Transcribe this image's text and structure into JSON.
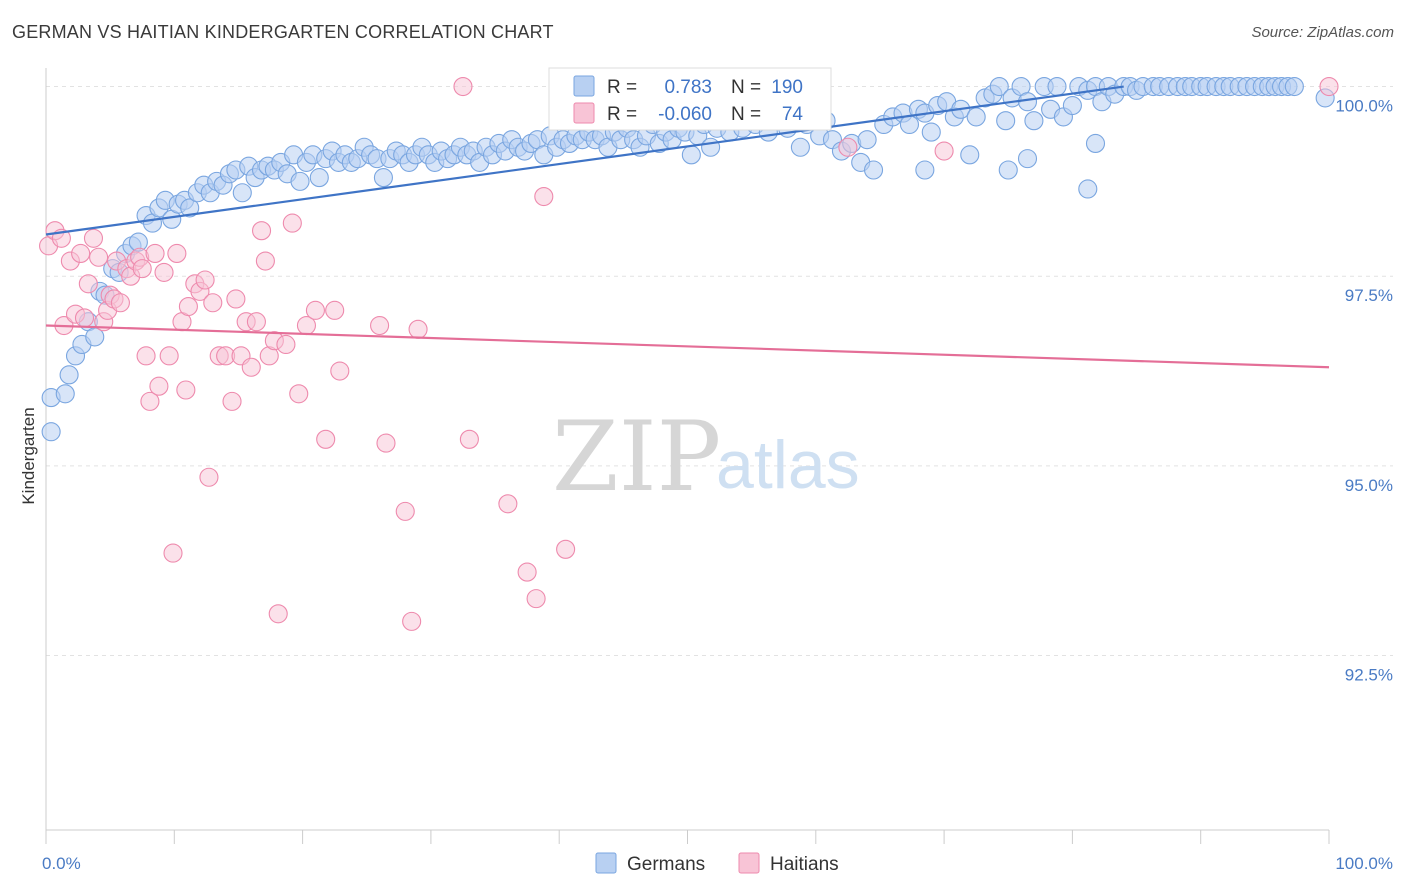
{
  "header": {
    "title": "GERMAN VS HAITIAN KINDERGARTEN CORRELATION CHART",
    "source": "Source: ZipAtlas.com"
  },
  "legend": {
    "rows": [
      {
        "r_label": "R =",
        "r_value": "0.783",
        "n_label": "N =",
        "n_value": "190",
        "color": "#7aa6e0",
        "fill": "#b8d0f2"
      },
      {
        "r_label": "R =",
        "r_value": "-0.060",
        "n_label": "N =",
        "n_value": "74",
        "color": "#ee8aad",
        "fill": "#f8c4d6"
      }
    ]
  },
  "bottom_legend": [
    {
      "label": "Germans",
      "color": "#7aa6e0",
      "fill": "#b8d0f2"
    },
    {
      "label": "Haitians",
      "color": "#ee8aad",
      "fill": "#f8c4d6"
    }
  ],
  "watermark": {
    "zip": "ZIP",
    "atlas": "atlas"
  },
  "chart_data": {
    "type": "scatter",
    "title": "GERMAN VS HAITIAN KINDERGARTEN CORRELATION CHART",
    "xlabel": "",
    "ylabel": "Kindergarten",
    "xlim": [
      0,
      100
    ],
    "ylim": [
      90.2,
      100.35
    ],
    "x_tick_labels": [
      "0.0%",
      "100.0%"
    ],
    "y_ticks": [
      {
        "value": 92.5,
        "label": "92.5%"
      },
      {
        "value": 95.0,
        "label": "95.0%"
      },
      {
        "value": 97.5,
        "label": "97.5%"
      },
      {
        "value": 100.0,
        "label": "100.0%"
      }
    ],
    "grid": "horizontal dashed",
    "series": [
      {
        "name": "Germans",
        "color": "#3f74c6",
        "point_color": "#7aa6e0",
        "trend": {
          "x0": 0,
          "y0": 98.05,
          "x1": 84,
          "y1": 100.0
        },
        "points": [
          [
            0.4,
            95.9
          ],
          [
            0.4,
            95.45
          ],
          [
            1.5,
            95.95
          ],
          [
            1.8,
            96.2
          ],
          [
            2.3,
            96.45
          ],
          [
            2.8,
            96.6
          ],
          [
            3.3,
            96.9
          ],
          [
            3.8,
            96.7
          ],
          [
            4.2,
            97.3
          ],
          [
            4.6,
            97.25
          ],
          [
            5.2,
            97.6
          ],
          [
            5.7,
            97.55
          ],
          [
            6.2,
            97.8
          ],
          [
            6.7,
            97.9
          ],
          [
            7.2,
            97.95
          ],
          [
            7.8,
            98.3
          ],
          [
            8.3,
            98.2
          ],
          [
            8.8,
            98.4
          ],
          [
            9.3,
            98.5
          ],
          [
            9.8,
            98.25
          ],
          [
            10.3,
            98.45
          ],
          [
            10.8,
            98.5
          ],
          [
            11.2,
            98.4
          ],
          [
            11.8,
            98.6
          ],
          [
            12.3,
            98.7
          ],
          [
            12.8,
            98.6
          ],
          [
            13.3,
            98.75
          ],
          [
            13.8,
            98.7
          ],
          [
            14.3,
            98.85
          ],
          [
            14.8,
            98.9
          ],
          [
            15.3,
            98.6
          ],
          [
            15.8,
            98.95
          ],
          [
            16.3,
            98.8
          ],
          [
            16.8,
            98.9
          ],
          [
            17.3,
            98.95
          ],
          [
            17.8,
            98.9
          ],
          [
            18.3,
            99.0
          ],
          [
            18.8,
            98.85
          ],
          [
            19.3,
            99.1
          ],
          [
            19.8,
            98.75
          ],
          [
            20.3,
            99.0
          ],
          [
            20.8,
            99.1
          ],
          [
            21.3,
            98.8
          ],
          [
            21.8,
            99.05
          ],
          [
            22.3,
            99.15
          ],
          [
            22.8,
            99.0
          ],
          [
            23.3,
            99.1
          ],
          [
            23.8,
            99.0
          ],
          [
            24.3,
            99.05
          ],
          [
            24.8,
            99.2
          ],
          [
            25.3,
            99.1
          ],
          [
            25.8,
            99.05
          ],
          [
            26.3,
            98.8
          ],
          [
            26.8,
            99.05
          ],
          [
            27.3,
            99.15
          ],
          [
            27.8,
            99.1
          ],
          [
            28.3,
            99.0
          ],
          [
            28.8,
            99.1
          ],
          [
            29.3,
            99.2
          ],
          [
            29.8,
            99.1
          ],
          [
            30.3,
            99.0
          ],
          [
            30.8,
            99.15
          ],
          [
            31.3,
            99.05
          ],
          [
            31.8,
            99.1
          ],
          [
            32.3,
            99.2
          ],
          [
            32.8,
            99.1
          ],
          [
            33.3,
            99.15
          ],
          [
            33.8,
            99.0
          ],
          [
            34.3,
            99.2
          ],
          [
            34.8,
            99.1
          ],
          [
            35.3,
            99.25
          ],
          [
            35.8,
            99.15
          ],
          [
            36.3,
            99.3
          ],
          [
            36.8,
            99.2
          ],
          [
            37.3,
            99.15
          ],
          [
            37.8,
            99.25
          ],
          [
            38.3,
            99.3
          ],
          [
            38.8,
            99.1
          ],
          [
            39.3,
            99.35
          ],
          [
            39.8,
            99.2
          ],
          [
            40.3,
            99.3
          ],
          [
            40.8,
            99.25
          ],
          [
            41.3,
            99.35
          ],
          [
            41.8,
            99.3
          ],
          [
            42.3,
            99.4
          ],
          [
            42.8,
            99.3
          ],
          [
            43.3,
            99.35
          ],
          [
            43.8,
            99.2
          ],
          [
            44.3,
            99.4
          ],
          [
            44.8,
            99.3
          ],
          [
            45.3,
            99.45
          ],
          [
            45.8,
            99.3
          ],
          [
            46.3,
            99.2
          ],
          [
            46.8,
            99.35
          ],
          [
            47.3,
            99.5
          ],
          [
            47.8,
            99.25
          ],
          [
            48.3,
            99.4
          ],
          [
            48.8,
            99.3
          ],
          [
            49.3,
            99.45
          ],
          [
            49.8,
            99.4
          ],
          [
            50.3,
            99.1
          ],
          [
            50.8,
            99.35
          ],
          [
            51.3,
            99.5
          ],
          [
            51.8,
            99.2
          ],
          [
            52.3,
            99.45
          ],
          [
            52.8,
            99.55
          ],
          [
            53.3,
            99.4
          ],
          [
            53.8,
            99.6
          ],
          [
            54.3,
            99.45
          ],
          [
            54.8,
            99.65
          ],
          [
            55.3,
            99.5
          ],
          [
            55.8,
            99.7
          ],
          [
            56.3,
            99.4
          ],
          [
            56.8,
            99.55
          ],
          [
            57.3,
            99.6
          ],
          [
            57.8,
            99.45
          ],
          [
            58.3,
            99.6
          ],
          [
            58.8,
            99.2
          ],
          [
            59.3,
            99.5
          ],
          [
            59.8,
            99.55
          ],
          [
            60.3,
            99.35
          ],
          [
            60.8,
            99.55
          ],
          [
            61.3,
            99.3
          ],
          [
            62.0,
            99.15
          ],
          [
            62.8,
            99.25
          ],
          [
            63.5,
            99.0
          ],
          [
            64.0,
            99.3
          ],
          [
            64.5,
            98.9
          ],
          [
            65.3,
            99.5
          ],
          [
            66.0,
            99.6
          ],
          [
            66.8,
            99.65
          ],
          [
            67.3,
            99.5
          ],
          [
            68.0,
            99.7
          ],
          [
            68.5,
            99.65
          ],
          [
            69.0,
            99.4
          ],
          [
            69.5,
            99.75
          ],
          [
            70.2,
            99.8
          ],
          [
            70.8,
            99.6
          ],
          [
            71.3,
            99.7
          ],
          [
            72.0,
            99.1
          ],
          [
            72.5,
            99.6
          ],
          [
            73.2,
            99.85
          ],
          [
            73.8,
            99.9
          ],
          [
            74.3,
            100.0
          ],
          [
            74.8,
            99.55
          ],
          [
            75.3,
            99.85
          ],
          [
            76.0,
            100.0
          ],
          [
            76.5,
            99.05
          ],
          [
            77.0,
            99.55
          ],
          [
            77.8,
            100.0
          ],
          [
            78.3,
            99.7
          ],
          [
            78.8,
            100.0
          ],
          [
            79.3,
            99.6
          ],
          [
            80.0,
            99.75
          ],
          [
            80.5,
            100.0
          ],
          [
            81.2,
            99.95
          ],
          [
            81.8,
            100.0
          ],
          [
            82.3,
            99.8
          ],
          [
            82.8,
            100.0
          ],
          [
            83.3,
            99.9
          ],
          [
            84.0,
            100.0
          ],
          [
            84.5,
            100.0
          ],
          [
            85.0,
            99.95
          ],
          [
            85.5,
            100.0
          ],
          [
            86.3,
            100.0
          ],
          [
            86.8,
            100.0
          ],
          [
            87.5,
            100.0
          ],
          [
            88.2,
            100.0
          ],
          [
            88.8,
            100.0
          ],
          [
            89.3,
            100.0
          ],
          [
            90.0,
            100.0
          ],
          [
            90.5,
            100.0
          ],
          [
            91.2,
            100.0
          ],
          [
            91.8,
            100.0
          ],
          [
            92.3,
            100.0
          ],
          [
            93.0,
            100.0
          ],
          [
            93.6,
            100.0
          ],
          [
            94.2,
            100.0
          ],
          [
            94.8,
            100.0
          ],
          [
            95.3,
            100.0
          ],
          [
            95.8,
            100.0
          ],
          [
            96.3,
            100.0
          ],
          [
            96.8,
            100.0
          ],
          [
            97.3,
            100.0
          ],
          [
            81.2,
            98.65
          ],
          [
            81.8,
            99.25
          ],
          [
            75.0,
            98.9
          ],
          [
            68.5,
            98.9
          ],
          [
            99.7,
            99.85
          ],
          [
            76.5,
            99.8
          ]
        ]
      },
      {
        "name": "Haitians",
        "color": "#e46e97",
        "point_color": "#ee8aad",
        "trend": {
          "x0": 0,
          "y0": 96.85,
          "x1": 100,
          "y1": 96.3
        },
        "points": [
          [
            0.2,
            97.9
          ],
          [
            0.7,
            98.1
          ],
          [
            1.2,
            98.0
          ],
          [
            1.4,
            96.85
          ],
          [
            1.9,
            97.7
          ],
          [
            2.3,
            97.0
          ],
          [
            2.7,
            97.8
          ],
          [
            3.0,
            96.95
          ],
          [
            3.3,
            97.4
          ],
          [
            3.7,
            98.0
          ],
          [
            4.1,
            97.75
          ],
          [
            4.5,
            96.9
          ],
          [
            4.8,
            97.05
          ],
          [
            5.0,
            97.25
          ],
          [
            5.3,
            97.2
          ],
          [
            5.5,
            97.7
          ],
          [
            5.8,
            97.15
          ],
          [
            6.3,
            97.6
          ],
          [
            6.6,
            97.5
          ],
          [
            7.0,
            97.7
          ],
          [
            7.3,
            97.75
          ],
          [
            7.5,
            97.6
          ],
          [
            7.8,
            96.45
          ],
          [
            8.1,
            95.85
          ],
          [
            8.5,
            97.8
          ],
          [
            8.8,
            96.05
          ],
          [
            9.2,
            97.55
          ],
          [
            9.6,
            96.45
          ],
          [
            9.9,
            93.85
          ],
          [
            10.2,
            97.8
          ],
          [
            10.6,
            96.9
          ],
          [
            10.9,
            96.0
          ],
          [
            11.1,
            97.1
          ],
          [
            11.6,
            97.4
          ],
          [
            12.0,
            97.3
          ],
          [
            12.4,
            97.45
          ],
          [
            12.7,
            94.85
          ],
          [
            13.0,
            97.15
          ],
          [
            13.5,
            96.45
          ],
          [
            14.0,
            96.45
          ],
          [
            14.5,
            95.85
          ],
          [
            14.8,
            97.2
          ],
          [
            15.2,
            96.45
          ],
          [
            15.6,
            96.9
          ],
          [
            16.0,
            96.3
          ],
          [
            16.4,
            96.9
          ],
          [
            16.8,
            98.1
          ],
          [
            17.1,
            97.7
          ],
          [
            17.4,
            96.45
          ],
          [
            17.8,
            96.65
          ],
          [
            18.1,
            93.05
          ],
          [
            18.7,
            96.6
          ],
          [
            19.2,
            98.2
          ],
          [
            19.7,
            95.95
          ],
          [
            20.3,
            96.85
          ],
          [
            21.0,
            97.05
          ],
          [
            21.8,
            95.35
          ],
          [
            22.5,
            97.05
          ],
          [
            22.9,
            96.25
          ],
          [
            26.0,
            96.85
          ],
          [
            26.5,
            95.3
          ],
          [
            28.0,
            94.4
          ],
          [
            28.5,
            92.95
          ],
          [
            29.0,
            96.8
          ],
          [
            32.5,
            100.0
          ],
          [
            33.0,
            95.35
          ],
          [
            36.0,
            94.5
          ],
          [
            37.5,
            93.6
          ],
          [
            38.2,
            93.25
          ],
          [
            38.8,
            98.55
          ],
          [
            40.5,
            93.9
          ],
          [
            62.5,
            99.2
          ],
          [
            70.0,
            99.15
          ],
          [
            100.0,
            100.0
          ]
        ]
      }
    ]
  }
}
